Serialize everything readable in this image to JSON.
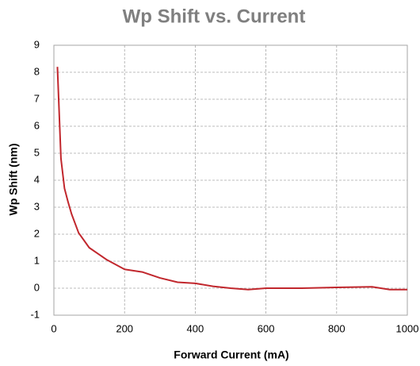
{
  "chart_data": {
    "type": "line",
    "title": "Wp Shift vs. Current",
    "x_label": "Forward Current (mA)",
    "y_label": "Wp Shift (nm)",
    "x": [
      10,
      20,
      30,
      40,
      50,
      70,
      100,
      150,
      200,
      250,
      300,
      350,
      400,
      450,
      500,
      550,
      600,
      700,
      800,
      900,
      950,
      1000
    ],
    "series": [
      {
        "name": "Wp Shift",
        "color": "#c1272d",
        "values": [
          8.2,
          4.8,
          3.7,
          3.2,
          2.75,
          2.05,
          1.5,
          1.05,
          0.7,
          0.6,
          0.38,
          0.22,
          0.18,
          0.07,
          0.0,
          -0.05,
          0.0,
          0.0,
          0.03,
          0.05,
          -0.05,
          -0.05
        ]
      }
    ],
    "xlim": [
      0,
      1000
    ],
    "xticks": [
      0,
      200,
      400,
      600,
      800,
      1000
    ],
    "ylim": [
      -1,
      9
    ],
    "yticks": [
      -1,
      0,
      1,
      2,
      3,
      4,
      5,
      6,
      7,
      8,
      9
    ],
    "grid": true
  }
}
